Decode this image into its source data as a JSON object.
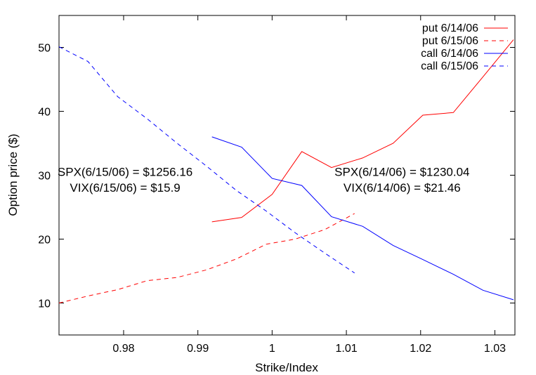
{
  "chart_data": {
    "type": "line",
    "xlabel": "Strike/Index",
    "ylabel": "Option price ($)",
    "xlim": [
      0.9713,
      1.0327
    ],
    "ylim": [
      5,
      55
    ],
    "xticks": [
      0.98,
      0.99,
      1.0,
      1.01,
      1.02,
      1.03
    ],
    "xtick_labels": [
      "0.98",
      "0.99",
      "1",
      "1.01",
      "1.02",
      "1.03"
    ],
    "yticks": [
      10,
      20,
      30,
      40,
      50
    ],
    "ytick_labels": [
      "10",
      "20",
      "30",
      "40",
      "50"
    ],
    "grid": false,
    "legend": "top-right",
    "series": [
      {
        "name": "put 6/14/06",
        "color": "#ff0000",
        "dash": "solid",
        "x": [
          0.9919,
          0.9959,
          1.0,
          1.004,
          1.008,
          1.0122,
          1.0163,
          1.0203,
          1.0244,
          1.0284,
          1.0325
        ],
        "y": [
          22.7,
          23.4,
          27.0,
          33.7,
          31.2,
          32.7,
          35.0,
          39.4,
          39.8,
          45.4,
          51.2
        ]
      },
      {
        "name": "put 6/15/06",
        "color": "#ff0000",
        "dash": "dashed",
        "x": [
          0.9713,
          0.9752,
          0.9792,
          0.9832,
          0.9872,
          0.9912,
          0.9952,
          0.9992,
          1.0031,
          1.0071,
          1.0111
        ],
        "y": [
          10.0,
          11.1,
          12.1,
          13.5,
          14.0,
          15.2,
          16.9,
          19.2,
          20.0,
          21.5,
          24.0
        ]
      },
      {
        "name": "call 6/14/06",
        "color": "#0000ff",
        "dash": "solid",
        "x": [
          0.9919,
          0.9959,
          1.0,
          1.004,
          1.008,
          1.0122,
          1.0163,
          1.0203,
          1.0244,
          1.0284,
          1.0325
        ],
        "y": [
          36.0,
          34.4,
          29.5,
          28.4,
          23.5,
          22.0,
          19.0,
          16.8,
          14.5,
          12.0,
          10.5
        ]
      },
      {
        "name": "call 6/15/06",
        "color": "#0000ff",
        "dash": "dashed",
        "x": [
          0.9713,
          0.9752,
          0.9792,
          0.9832,
          0.9872,
          0.9912,
          0.9952,
          0.9992,
          1.0031,
          1.0071,
          1.0111
        ],
        "y": [
          50.1,
          47.8,
          42.3,
          38.8,
          35.0,
          31.4,
          27.6,
          24.4,
          21.0,
          17.8,
          14.7
        ]
      }
    ],
    "annotations": [
      {
        "id": "spx-615",
        "text": "SPX(6/15/06) = $1256.16",
        "x": 0.9802,
        "y": 29.9
      },
      {
        "id": "vix-615",
        "text": "VIX(6/15/06) = $15.9",
        "x": 0.9802,
        "y": 27.4
      },
      {
        "id": "spx-614",
        "text": "SPX(6/14/06) = $1230.04",
        "x": 1.0175,
        "y": 29.9
      },
      {
        "id": "vix-614",
        "text": "VIX(6/14/06) = $21.46",
        "x": 1.0175,
        "y": 27.4
      }
    ]
  }
}
